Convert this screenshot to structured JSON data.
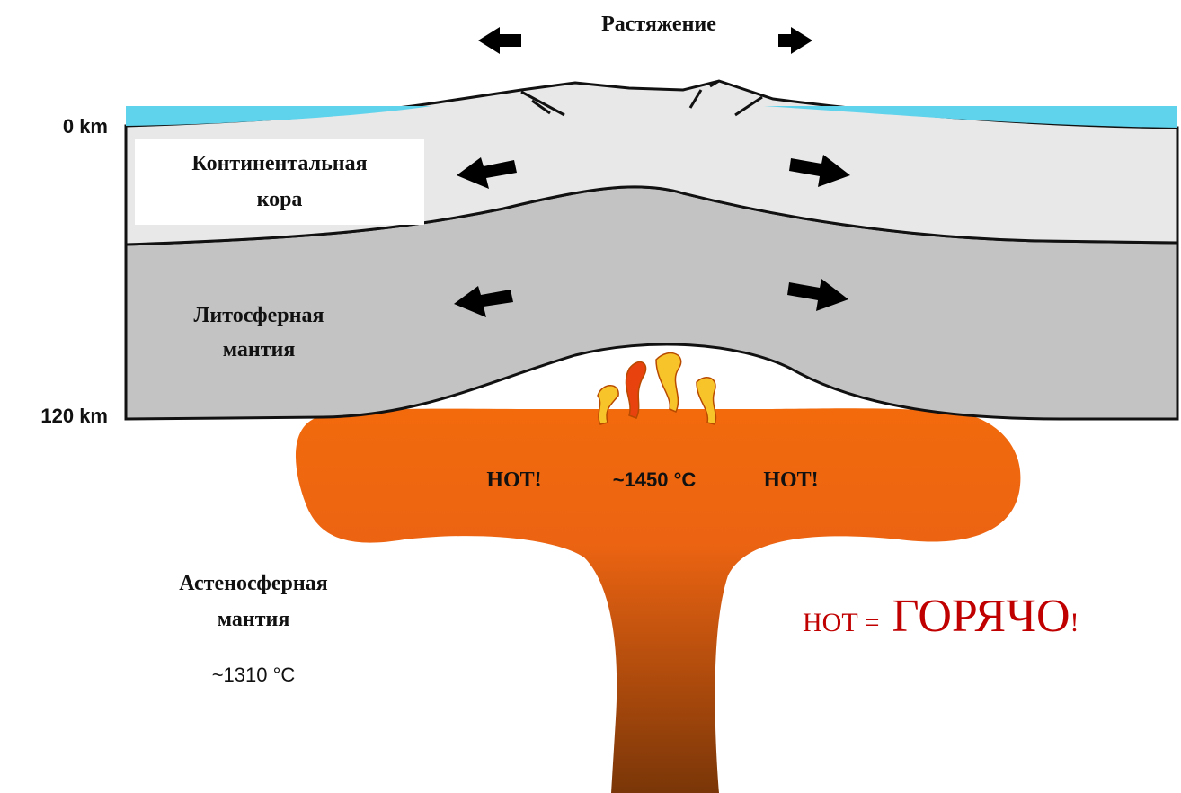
{
  "title": "Растяжение",
  "depth_labels": [
    "0 km",
    "120 km"
  ],
  "layers": [
    {
      "label_lines": [
        "Континентальная",
        "кора"
      ]
    },
    {
      "label_lines": [
        "Литосферная",
        "мантия"
      ]
    }
  ],
  "plume_labels": [
    "HOT!",
    "~1450 °C",
    "HOT!"
  ],
  "asthenosphere": {
    "label_lines": [
      "Астеносферная",
      "мантия"
    ],
    "temperature": "~1310 °C"
  },
  "note": {
    "prefix": "HOT =",
    "word": "ГОРЯЧО",
    "suffix": "!"
  }
}
